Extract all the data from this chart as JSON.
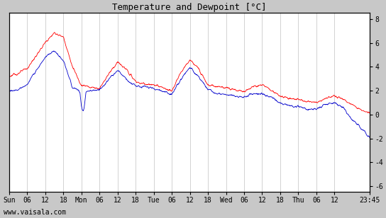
{
  "title": "Temperature and Dewpoint [°C]",
  "ylabel_right_ticks": [
    8,
    6,
    4,
    2,
    0,
    -2,
    -4,
    -6
  ],
  "ylim": [
    -6.5,
    8.5
  ],
  "background_color": "#c8c8c8",
  "plot_bg_color": "#ffffff",
  "grid_color": "#c0c0c0",
  "temp_color": "#ff0000",
  "dewpoint_color": "#0000cc",
  "watermark": "www.vaisala.com",
  "x_tick_labels": [
    "Sun",
    "06",
    "12",
    "18",
    "Mon",
    "06",
    "12",
    "18",
    "Tue",
    "06",
    "12",
    "18",
    "Wed",
    "06",
    "12",
    "18",
    "Thu",
    "06",
    "12",
    "23:45"
  ],
  "x_tick_positions": [
    0,
    6,
    12,
    18,
    24,
    30,
    36,
    42,
    48,
    54,
    60,
    66,
    72,
    78,
    84,
    90,
    96,
    102,
    108,
    119.75
  ],
  "total_hours": 119.75,
  "figsize": [
    5.44,
    3.08
  ],
  "dpi": 100
}
